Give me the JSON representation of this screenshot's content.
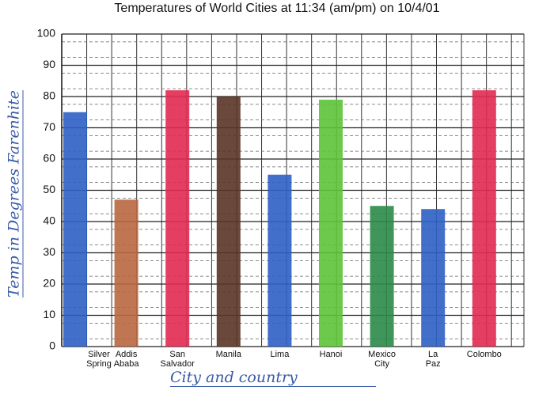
{
  "chart_data": {
    "type": "bar",
    "title": "Temperatures of World Cities at 11:34 (am/pm) on 10/4/01",
    "y_label": "Temp in Degrees Farenhite",
    "x_label": "City and country",
    "categories": [
      "Silver Spring",
      "Addis Ababa",
      "San Salvador",
      "Manila",
      "Lima",
      "Hanoi",
      "Mexico City",
      "La Paz",
      "Colombo"
    ],
    "values": [
      75,
      47,
      82,
      80,
      55,
      79,
      45,
      44,
      82
    ],
    "colors": [
      "#2d5fc4",
      "#b9673f",
      "#e12a52",
      "#5b3427",
      "#2d5fc4",
      "#5cc337",
      "#2b8a48",
      "#2d5fc4",
      "#e12a52"
    ],
    "ylim": [
      0,
      100
    ],
    "yticks": [
      0,
      10,
      20,
      30,
      40,
      50,
      60,
      70,
      80,
      90,
      100
    ],
    "grid": true
  }
}
